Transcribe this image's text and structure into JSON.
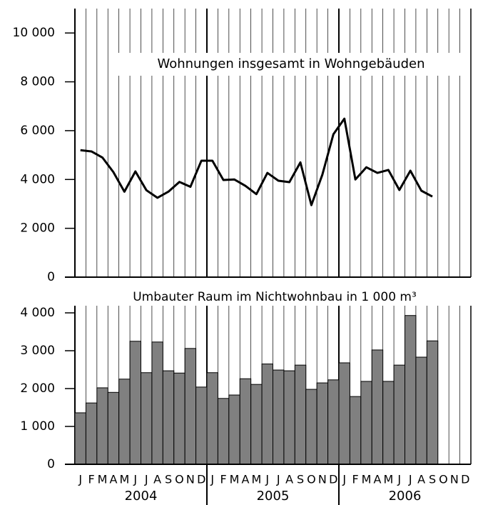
{
  "chart_data": [
    {
      "type": "line",
      "title": "Wohnungen insgesamt in Wohngebäuden",
      "color": "#000000",
      "values": [
        5200,
        5150,
        4900,
        4300,
        3500,
        4330,
        3560,
        3250,
        3500,
        3900,
        3700,
        4770,
        4770,
        3980,
        4000,
        3740,
        3400,
        4270,
        3950,
        3890,
        4700,
        2950,
        4200,
        5850,
        6490,
        4000,
        4500,
        4270,
        4390,
        3570,
        4360,
        3540,
        3300,
        null,
        null,
        null
      ],
      "ylim": [
        0,
        11000
      ],
      "yticks": [
        0,
        {
          "value": 2000,
          "label": "2 000"
        },
        {
          "value": 4000,
          "label": "4 000"
        },
        {
          "value": 6000,
          "label": "6 000"
        },
        {
          "value": 8000,
          "label": "8 000"
        },
        {
          "value": 10000,
          "label": "10 000"
        }
      ]
    },
    {
      "type": "bar",
      "title": "Umbauter Raum im Nichtwohnbau in 1 000 m³",
      "color": "#808080",
      "categories": [
        "J",
        "F",
        "M",
        "A",
        "M",
        "J",
        "J",
        "A",
        "S",
        "O",
        "N",
        "D",
        "J",
        "F",
        "M",
        "A",
        "M",
        "J",
        "J",
        "A",
        "S",
        "O",
        "N",
        "D",
        "J",
        "F",
        "M",
        "A",
        "M",
        "J",
        "J",
        "A",
        "S",
        "O",
        "N",
        "D"
      ],
      "years": [
        "2004",
        "2005",
        "2006"
      ],
      "values": [
        1360,
        1620,
        2020,
        1900,
        2250,
        3250,
        2420,
        3230,
        2470,
        2410,
        3060,
        2040,
        2420,
        1740,
        1830,
        2260,
        2110,
        2650,
        2490,
        2470,
        2620,
        1980,
        2150,
        2230,
        2680,
        1790,
        2190,
        3020,
        2190,
        2620,
        3930,
        2830,
        3260,
        null,
        null,
        null
      ],
      "ylim": [
        0,
        4000
      ],
      "yticks": [
        0,
        {
          "value": 1000,
          "label": "1 000"
        },
        {
          "value": 2000,
          "label": "2 000"
        },
        {
          "value": 3000,
          "label": "3 000"
        },
        {
          "value": 4000,
          "label": "4 000"
        }
      ]
    }
  ]
}
